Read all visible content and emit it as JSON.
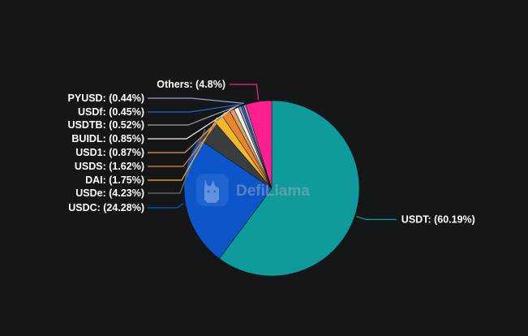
{
  "chart_data": {
    "type": "pie",
    "title": "",
    "slices": [
      {
        "name": "USDT",
        "value": 60.19,
        "label": "USDT: (60.19%)",
        "color": "#0f9b9b"
      },
      {
        "name": "USDC",
        "value": 24.28,
        "label": "USDC: (24.28%)",
        "color": "#0c56c9"
      },
      {
        "name": "USDe",
        "value": 4.23,
        "label": "USDe: (4.23%)",
        "color": "#3a3d40"
      },
      {
        "name": "DAI",
        "value": 1.75,
        "label": "DAI: (1.75%)",
        "color": "#f0b82a"
      },
      {
        "name": "USDS",
        "value": 1.62,
        "label": "USDS: (1.62%)",
        "color": "#e8862b"
      },
      {
        "name": "USD1",
        "value": 0.87,
        "label": "USD1: (0.87%)",
        "color": "#d9a06a"
      },
      {
        "name": "BUIDL",
        "value": 0.85,
        "label": "BUIDL: (0.85%)",
        "color": "#f3f3f3"
      },
      {
        "name": "USDTB",
        "value": 0.52,
        "label": "USDTB: (0.52%)",
        "color": "#9c9c9c"
      },
      {
        "name": "USDf",
        "value": 0.45,
        "label": "USDf: (0.45%)",
        "color": "#2c5fd6"
      },
      {
        "name": "PYUSD",
        "value": 0.44,
        "label": "PYUSD: (0.44%)",
        "color": "#8fa6c4"
      },
      {
        "name": "Others",
        "value": 4.8,
        "label": "Others: (4.8%)",
        "color": "#ff1f8e"
      }
    ]
  },
  "watermark": {
    "text": "DefiLlama"
  }
}
